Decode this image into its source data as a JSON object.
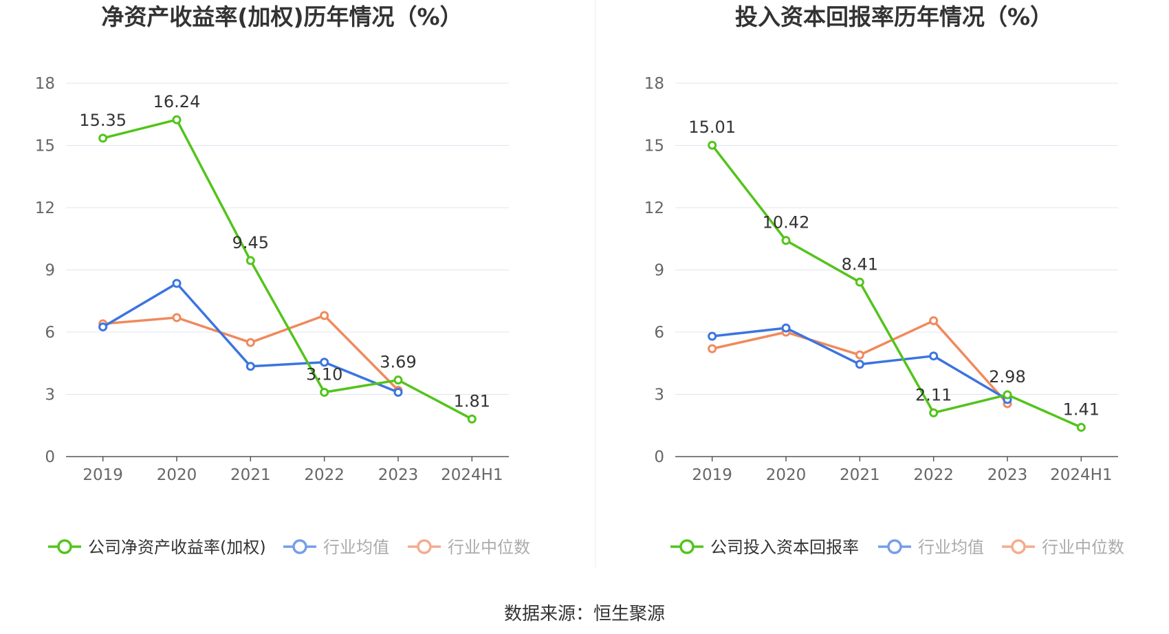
{
  "source_text": "数据来源：恒生聚源",
  "chart_data": [
    {
      "type": "line",
      "title": "净资产收益率(加权)历年情况（%）",
      "categories": [
        "2019",
        "2020",
        "2021",
        "2022",
        "2023",
        "2024H1"
      ],
      "y_ticks": [
        "0",
        "3",
        "6",
        "9",
        "12",
        "15",
        "18"
      ],
      "ylim": [
        0,
        18
      ],
      "grid": true,
      "legend_position": "bottom",
      "series": [
        {
          "name": "公司净资产收益率(加权)",
          "color": "#52c41a",
          "values": [
            15.35,
            16.24,
            9.45,
            3.1,
            3.69,
            1.81
          ],
          "labels": [
            "15.35",
            "16.24",
            "9.45",
            "3.10",
            "3.69",
            "1.81"
          ],
          "show_labels": true
        },
        {
          "name": "行业均值",
          "color": "#3b74e0",
          "values": [
            6.25,
            8.35,
            4.35,
            4.55,
            3.1,
            null
          ],
          "show_labels": false
        },
        {
          "name": "行业中位数",
          "color": "#f0895c",
          "values": [
            6.4,
            6.7,
            5.5,
            6.8,
            3.2,
            null
          ],
          "show_labels": false
        }
      ]
    },
    {
      "type": "line",
      "title": "投入资本回报率历年情况（%）",
      "categories": [
        "2019",
        "2020",
        "2021",
        "2022",
        "2023",
        "2024H1"
      ],
      "y_ticks": [
        "0",
        "3",
        "6",
        "9",
        "12",
        "15",
        "18"
      ],
      "ylim": [
        0,
        18
      ],
      "grid": true,
      "legend_position": "bottom",
      "series": [
        {
          "name": "公司投入资本回报率",
          "color": "#52c41a",
          "values": [
            15.01,
            10.42,
            8.41,
            2.11,
            2.98,
            1.41
          ],
          "labels": [
            "15.01",
            "10.42",
            "8.41",
            "2.11",
            "2.98",
            "1.41"
          ],
          "show_labels": true
        },
        {
          "name": "行业均值",
          "color": "#3b74e0",
          "values": [
            5.8,
            6.2,
            4.45,
            4.85,
            2.75,
            null
          ],
          "show_labels": false
        },
        {
          "name": "行业中位数",
          "color": "#f0895c",
          "values": [
            5.2,
            6.0,
            4.9,
            6.55,
            2.55,
            null
          ],
          "show_labels": false
        }
      ]
    }
  ]
}
